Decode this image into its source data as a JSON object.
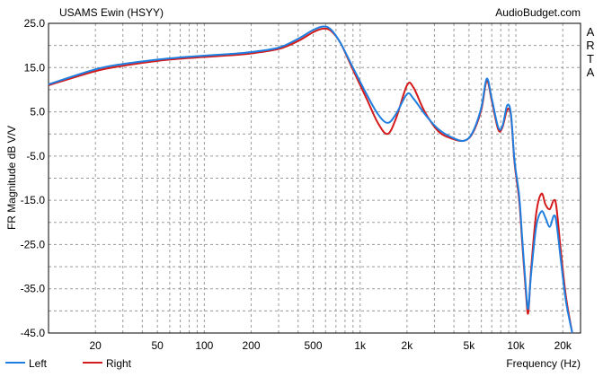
{
  "chart_data": {
    "type": "line",
    "title": "USAMS Ewin (HSYY)",
    "watermark": "AudioBudget.com",
    "side_label": "ARTA",
    "xlabel": "Frequency (Hz)",
    "ylabel": "FR Magnitude dB V/V",
    "x_scale": "log",
    "xlim": [
      10,
      26000
    ],
    "ylim": [
      -45,
      25
    ],
    "grid": true,
    "legend_position": "bottom-left",
    "y_ticks": [
      "25.0",
      "15.0",
      "5.0",
      "-5.0",
      "-15.0",
      "-25.0",
      "-35.0",
      "-45.0"
    ],
    "y_tick_values": [
      25,
      15,
      5,
      -5,
      -15,
      -25,
      -35,
      -45
    ],
    "x_ticks": [
      "20",
      "50",
      "100",
      "200",
      "500",
      "1k",
      "2k",
      "5k",
      "10k",
      "20k"
    ],
    "x_tick_values": [
      20,
      50,
      100,
      200,
      500,
      1000,
      2000,
      5000,
      10000,
      20000
    ],
    "series": [
      {
        "name": "Left",
        "color": "#1f7fe0",
        "points": [
          [
            10,
            11.2
          ],
          [
            20,
            14.6
          ],
          [
            30,
            15.8
          ],
          [
            50,
            16.8
          ],
          [
            70,
            17.3
          ],
          [
            100,
            17.7
          ],
          [
            150,
            18.1
          ],
          [
            200,
            18.5
          ],
          [
            300,
            19.5
          ],
          [
            400,
            21.5
          ],
          [
            500,
            23.5
          ],
          [
            580,
            24.3
          ],
          [
            650,
            23.6
          ],
          [
            750,
            20.5
          ],
          [
            900,
            15.0
          ],
          [
            1100,
            9.0
          ],
          [
            1300,
            4.5
          ],
          [
            1500,
            2.5
          ],
          [
            1700,
            4.5
          ],
          [
            2000,
            9.0
          ],
          [
            2200,
            8.0
          ],
          [
            2600,
            4.5
          ],
          [
            3200,
            1.0
          ],
          [
            4000,
            -1.0
          ],
          [
            4700,
            -1.5
          ],
          [
            5300,
            0.5
          ],
          [
            6000,
            6.0
          ],
          [
            6500,
            12.5
          ],
          [
            7000,
            8.0
          ],
          [
            7700,
            1.5
          ],
          [
            8200,
            1.8
          ],
          [
            8800,
            6.5
          ],
          [
            9300,
            4.5
          ],
          [
            9800,
            -6.0
          ],
          [
            10500,
            -14.0
          ],
          [
            11000,
            -24.0
          ],
          [
            11600,
            -35.0
          ],
          [
            12000,
            -39.5
          ],
          [
            12500,
            -32.0
          ],
          [
            13500,
            -21.0
          ],
          [
            14600,
            -17.5
          ],
          [
            15500,
            -19.0
          ],
          [
            16500,
            -21.0
          ],
          [
            17500,
            -18.5
          ],
          [
            18200,
            -20.0
          ],
          [
            19500,
            -29.0
          ],
          [
            21000,
            -38.0
          ],
          [
            23000,
            -45.0
          ]
        ]
      },
      {
        "name": "Right",
        "color": "#d41a1a",
        "points": [
          [
            10,
            11.0
          ],
          [
            20,
            14.2
          ],
          [
            30,
            15.4
          ],
          [
            50,
            16.5
          ],
          [
            70,
            17.0
          ],
          [
            100,
            17.4
          ],
          [
            150,
            17.8
          ],
          [
            200,
            18.2
          ],
          [
            300,
            19.2
          ],
          [
            400,
            21.0
          ],
          [
            500,
            23.0
          ],
          [
            580,
            23.8
          ],
          [
            650,
            23.3
          ],
          [
            750,
            20.5
          ],
          [
            900,
            14.5
          ],
          [
            1100,
            8.0
          ],
          [
            1300,
            2.5
          ],
          [
            1500,
            0.0
          ],
          [
            1700,
            3.5
          ],
          [
            2000,
            11.0
          ],
          [
            2200,
            10.5
          ],
          [
            2600,
            5.0
          ],
          [
            3200,
            0.5
          ],
          [
            4000,
            -1.2
          ],
          [
            4700,
            -1.5
          ],
          [
            5300,
            0.3
          ],
          [
            6000,
            5.5
          ],
          [
            6500,
            12.0
          ],
          [
            7000,
            7.5
          ],
          [
            7700,
            1.0
          ],
          [
            8200,
            1.5
          ],
          [
            8800,
            5.5
          ],
          [
            9300,
            4.0
          ],
          [
            9800,
            -6.5
          ],
          [
            10500,
            -15.0
          ],
          [
            11000,
            -25.0
          ],
          [
            11600,
            -36.0
          ],
          [
            12000,
            -40.5
          ],
          [
            12500,
            -31.0
          ],
          [
            13500,
            -18.0
          ],
          [
            14600,
            -13.5
          ],
          [
            15500,
            -16.0
          ],
          [
            16500,
            -17.0
          ],
          [
            17500,
            -15.0
          ],
          [
            18200,
            -16.5
          ],
          [
            19500,
            -27.0
          ],
          [
            21000,
            -37.0
          ],
          [
            23000,
            -45.0
          ]
        ]
      }
    ]
  }
}
